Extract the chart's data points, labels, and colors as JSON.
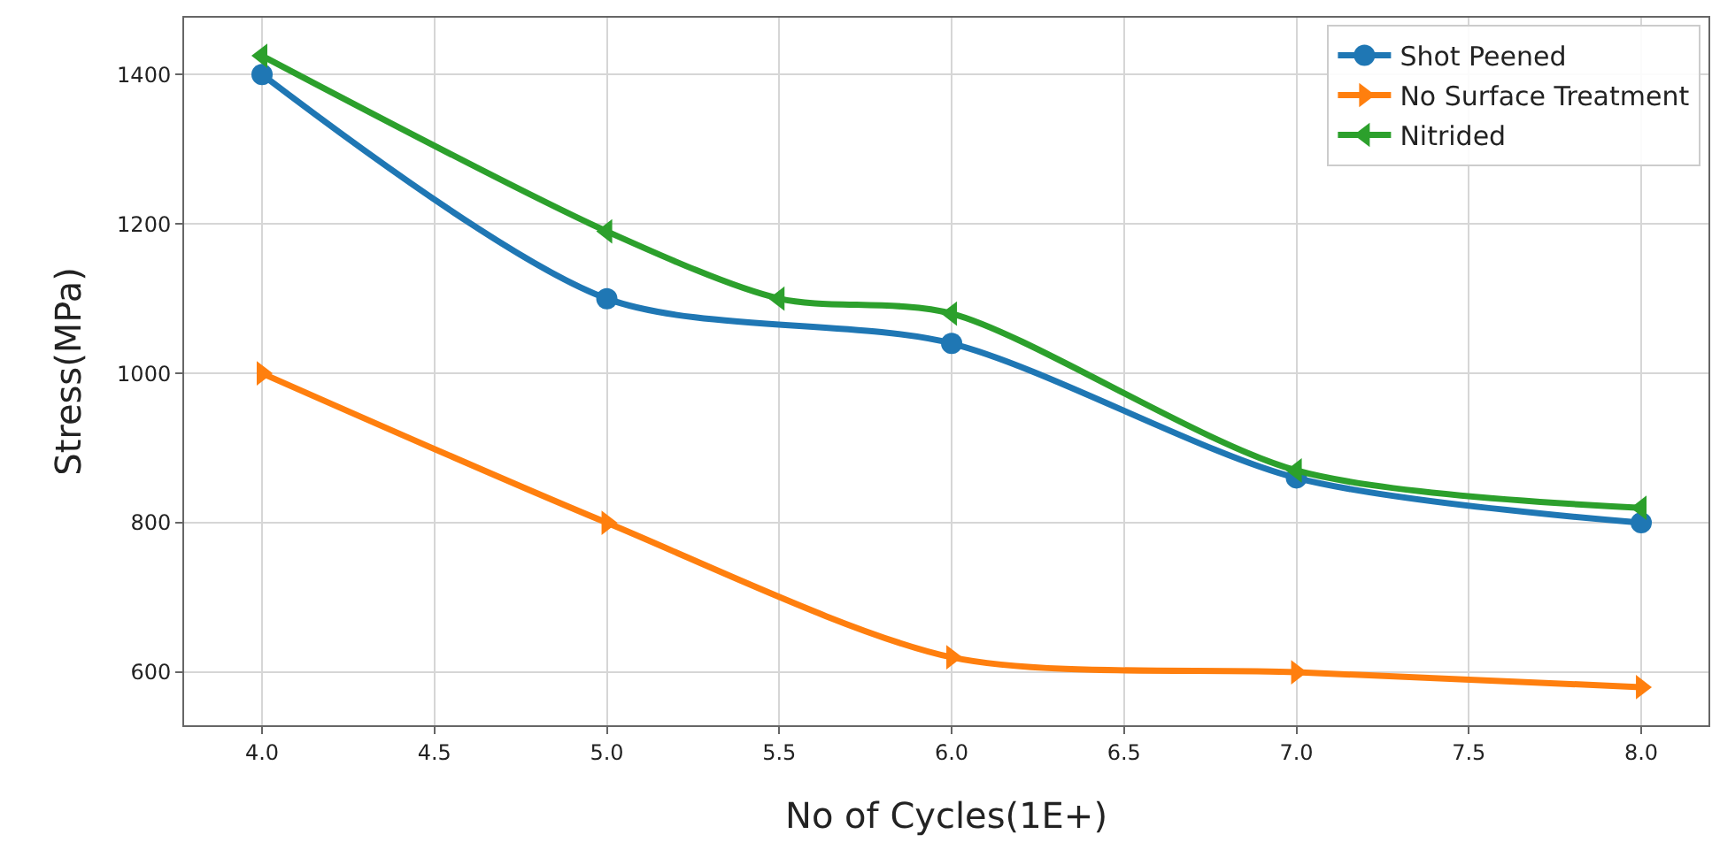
{
  "chart_data": {
    "type": "line",
    "xlabel": "No of Cycles(1E+)",
    "ylabel": "Stress(MPa)",
    "xlim": [
      3.774,
      8.195
    ],
    "xticks": [
      {
        "value": 4,
        "label": "4.0"
      },
      {
        "value": 4.5,
        "label": "4.5"
      },
      {
        "value": 5,
        "label": "5.0"
      },
      {
        "value": 5.5,
        "label": "5.5"
      },
      {
        "value": 6,
        "label": "6.0"
      },
      {
        "value": 6.5,
        "label": "6.5"
      },
      {
        "value": 7,
        "label": "7.0"
      },
      {
        "value": 7.5,
        "label": "7.5"
      },
      {
        "value": 8,
        "label": "8.0"
      }
    ],
    "ylim": [
      529,
      1476
    ],
    "yticks": [
      600,
      800,
      1000,
      1200,
      1400
    ],
    "grid": true,
    "legend": "top right",
    "line_style": "solid",
    "series": [
      {
        "name": "Shot Peened",
        "color": "#1f77b4",
        "marker": "circle",
        "x": [
          4,
          5,
          6,
          7,
          8
        ],
        "values": [
          1400,
          1100,
          1040,
          860,
          800
        ]
      },
      {
        "name": "No Surface Treatment",
        "color": "#ff7f0e",
        "marker": "triangle-right",
        "x": [
          4,
          5,
          6,
          7,
          8
        ],
        "values": [
          1000,
          800,
          620,
          600,
          580
        ]
      },
      {
        "name": "Nitrided",
        "color": "#2ca02c",
        "marker": "triangle-left",
        "x": [
          4,
          5,
          5.5,
          6,
          7,
          8
        ],
        "values": [
          1425,
          1190,
          1100,
          1080,
          870,
          820
        ]
      }
    ]
  }
}
